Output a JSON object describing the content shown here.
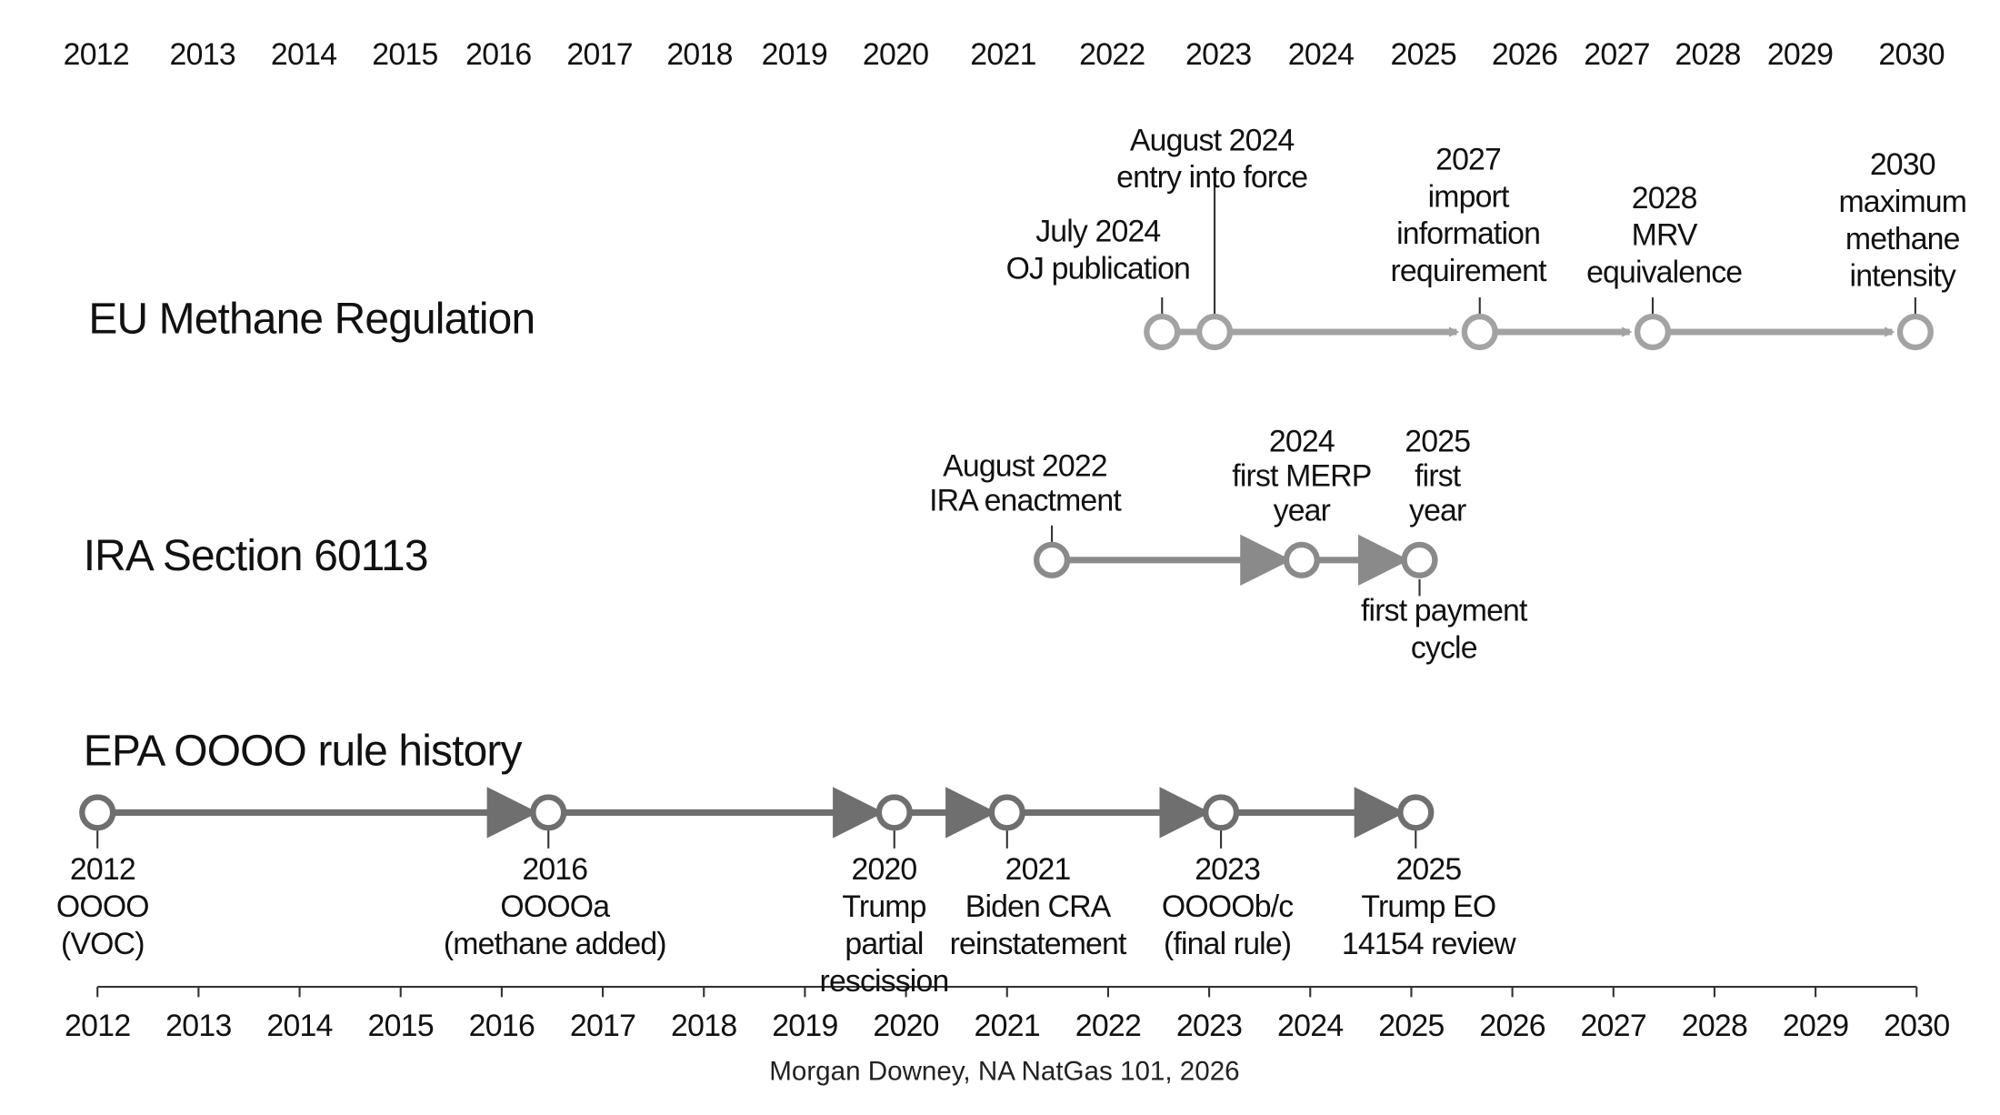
{
  "top_axis": {
    "years": [
      "2012",
      "2013",
      "2014",
      "2015",
      "2016",
      "2017",
      "2018",
      "2019",
      "2020",
      "2021",
      "2022",
      "2023",
      "2024",
      "2025",
      "2026",
      "2027",
      "2028",
      "2029",
      "2030"
    ]
  },
  "tracks": [
    {
      "title": "EU Methane Regulation",
      "events": [
        {
          "lines": [
            "July 2024",
            "OJ publication"
          ]
        },
        {
          "lines": [
            "August 2024",
            "entry into force"
          ]
        },
        {
          "lines": [
            "2027",
            "import",
            "information",
            "requirement"
          ]
        },
        {
          "lines": [
            "2028",
            "MRV",
            "equivalence"
          ]
        },
        {
          "lines": [
            "2030",
            "maximum",
            "methane",
            "intensity"
          ]
        }
      ]
    },
    {
      "title": "IRA Section 60113",
      "events": [
        {
          "lines": [
            "August 2022",
            "IRA enactment"
          ]
        },
        {
          "lines": [
            "2024",
            "first MERP",
            "year"
          ]
        },
        {
          "lines": [
            "2025",
            "first",
            "year"
          ],
          "note": [
            "first payment",
            "cycle"
          ]
        }
      ]
    },
    {
      "title": "EPA OOOO rule history",
      "events": [
        {
          "lines": [
            "2012",
            "OOOO",
            "(VOC)"
          ]
        },
        {
          "lines": [
            "2016",
            "OOOOa",
            "(methane added)"
          ]
        },
        {
          "lines": [
            "2020",
            "Trump",
            "partial",
            "rescission"
          ]
        },
        {
          "lines": [
            "2021",
            "Biden CRA",
            "reinstatement"
          ]
        },
        {
          "lines": [
            "2023",
            "OOOOb/c",
            "(final rule)"
          ]
        },
        {
          "lines": [
            "2025",
            "Trump EO",
            "14154 review"
          ]
        }
      ]
    }
  ],
  "bottom_axis": {
    "years": [
      "2012",
      "2013",
      "2014",
      "2015",
      "2016",
      "2017",
      "2018",
      "2019",
      "2020",
      "2021",
      "2022",
      "2023",
      "2024",
      "2025",
      "2026",
      "2027",
      "2028",
      "2029",
      "2030"
    ]
  },
  "footer": {
    "source": "Morgan Downey, NA NatGas 101, 2026"
  }
}
